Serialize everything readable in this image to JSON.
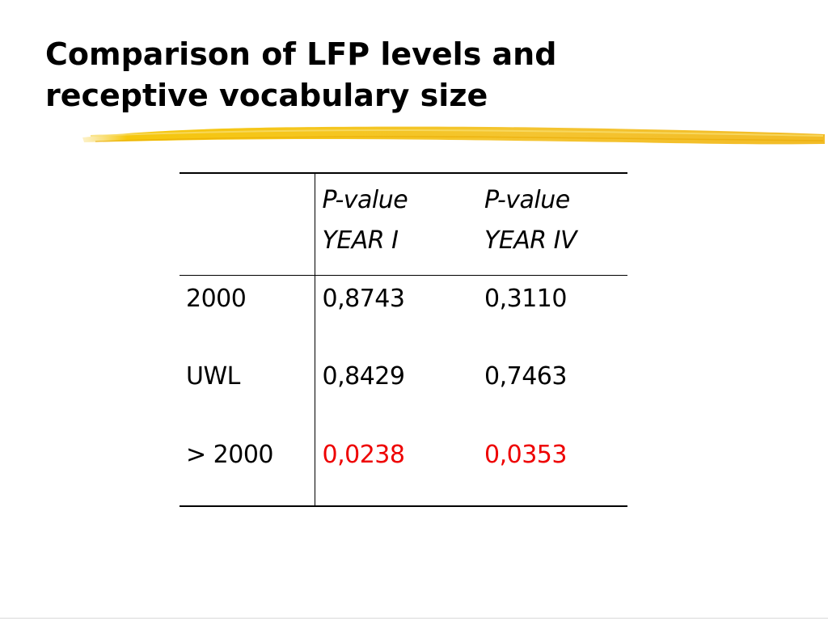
{
  "slide": {
    "title_lines": [
      "Comparison of LFP levels and",
      "receptive vocabulary size"
    ],
    "accent_color": "#f5c400",
    "significant_color": "#ee0000"
  },
  "table": {
    "headers": [
      [
        "",
        ""
      ],
      [
        "P-value",
        "YEAR I"
      ],
      [
        "P-value",
        "YEAR IV"
      ]
    ],
    "rows": [
      {
        "label": "2000",
        "year1": "0,8743",
        "year4": "0,3110",
        "significant": false
      },
      {
        "label": "UWL",
        "year1": "0,8429",
        "year4": "0,7463",
        "significant": false
      },
      {
        "label": "> 2000",
        "year1": "0,0238",
        "year4": "0,0353",
        "significant": true
      }
    ]
  }
}
